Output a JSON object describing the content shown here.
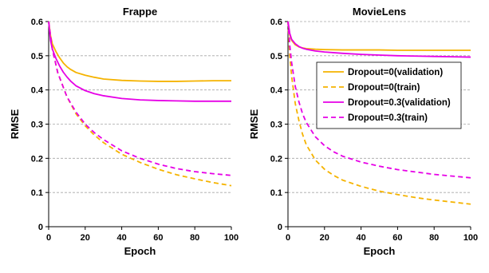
{
  "chart_data": [
    {
      "type": "line",
      "title": "Frappe",
      "xlabel": "Epoch",
      "ylabel": "RMSE",
      "xlim": [
        0,
        100
      ],
      "ylim": [
        0,
        0.6
      ],
      "xticks": [
        0,
        20,
        40,
        60,
        80,
        100
      ],
      "yticks": [
        0,
        0.1,
        0.2,
        0.3,
        0.4,
        0.5,
        0.6
      ],
      "grid": "horizontal-dashed",
      "series": [
        {
          "name": "Dropout=0(validation)",
          "color": "#F5B300",
          "dash": false,
          "points": [
            [
              0,
              0.6
            ],
            [
              1,
              0.56
            ],
            [
              2,
              0.535
            ],
            [
              4,
              0.512
            ],
            [
              6,
              0.494
            ],
            [
              8,
              0.479
            ],
            [
              10,
              0.468
            ],
            [
              12,
              0.46
            ],
            [
              15,
              0.451
            ],
            [
              20,
              0.443
            ],
            [
              25,
              0.437
            ],
            [
              30,
              0.432
            ],
            [
              40,
              0.428
            ],
            [
              50,
              0.426
            ],
            [
              60,
              0.425
            ],
            [
              70,
              0.425
            ],
            [
              80,
              0.426
            ],
            [
              90,
              0.427
            ],
            [
              100,
              0.427
            ]
          ]
        },
        {
          "name": "Dropout=0(train)",
          "color": "#F5B300",
          "dash": true,
          "points": [
            [
              0,
              0.6
            ],
            [
              2,
              0.52
            ],
            [
              5,
              0.45
            ],
            [
              10,
              0.38
            ],
            [
              15,
              0.33
            ],
            [
              20,
              0.295
            ],
            [
              25,
              0.268
            ],
            [
              30,
              0.246
            ],
            [
              40,
              0.212
            ],
            [
              50,
              0.188
            ],
            [
              60,
              0.168
            ],
            [
              70,
              0.152
            ],
            [
              80,
              0.14
            ],
            [
              90,
              0.129
            ],
            [
              100,
              0.12
            ]
          ]
        },
        {
          "name": "Dropout=0.3(validation)",
          "color": "#E600E6",
          "dash": false,
          "points": [
            [
              0,
              0.6
            ],
            [
              1,
              0.545
            ],
            [
              2,
              0.52
            ],
            [
              4,
              0.492
            ],
            [
              6,
              0.47
            ],
            [
              8,
              0.452
            ],
            [
              10,
              0.438
            ],
            [
              12,
              0.426
            ],
            [
              15,
              0.412
            ],
            [
              20,
              0.398
            ],
            [
              25,
              0.389
            ],
            [
              30,
              0.383
            ],
            [
              40,
              0.375
            ],
            [
              50,
              0.371
            ],
            [
              60,
              0.369
            ],
            [
              70,
              0.368
            ],
            [
              80,
              0.367
            ],
            [
              90,
              0.367
            ],
            [
              100,
              0.367
            ]
          ]
        },
        {
          "name": "Dropout=0.3(train)",
          "color": "#E600E6",
          "dash": true,
          "points": [
            [
              0,
              0.6
            ],
            [
              2,
              0.52
            ],
            [
              5,
              0.45
            ],
            [
              10,
              0.38
            ],
            [
              15,
              0.335
            ],
            [
              20,
              0.3
            ],
            [
              25,
              0.275
            ],
            [
              30,
              0.255
            ],
            [
              40,
              0.222
            ],
            [
              50,
              0.2
            ],
            [
              60,
              0.183
            ],
            [
              70,
              0.17
            ],
            [
              80,
              0.161
            ],
            [
              90,
              0.155
            ],
            [
              100,
              0.15
            ]
          ]
        }
      ]
    },
    {
      "type": "line",
      "title": "MovieLens",
      "xlabel": "Epoch",
      "ylabel": "RMSE",
      "xlim": [
        0,
        100
      ],
      "ylim": [
        0,
        0.6
      ],
      "xticks": [
        0,
        20,
        40,
        60,
        80,
        100
      ],
      "yticks": [
        0,
        0.1,
        0.2,
        0.3,
        0.4,
        0.5,
        0.6
      ],
      "grid": "horizontal-dashed",
      "legend": "center-right",
      "series": [
        {
          "name": "Dropout=0(validation)",
          "color": "#F5B300",
          "dash": false,
          "points": [
            [
              0,
              0.6
            ],
            [
              1,
              0.56
            ],
            [
              2,
              0.545
            ],
            [
              4,
              0.532
            ],
            [
              6,
              0.526
            ],
            [
              8,
              0.523
            ],
            [
              10,
              0.521
            ],
            [
              15,
              0.519
            ],
            [
              20,
              0.518
            ],
            [
              30,
              0.517
            ],
            [
              40,
              0.517
            ],
            [
              50,
              0.517
            ],
            [
              60,
              0.516
            ],
            [
              70,
              0.516
            ],
            [
              80,
              0.516
            ],
            [
              90,
              0.516
            ],
            [
              100,
              0.516
            ]
          ]
        },
        {
          "name": "Dropout=0(train)",
          "color": "#F5B300",
          "dash": true,
          "points": [
            [
              0,
              0.6
            ],
            [
              1,
              0.5
            ],
            [
              2,
              0.44
            ],
            [
              4,
              0.36
            ],
            [
              6,
              0.31
            ],
            [
              8,
              0.27
            ],
            [
              10,
              0.24
            ],
            [
              15,
              0.195
            ],
            [
              20,
              0.168
            ],
            [
              25,
              0.15
            ],
            [
              30,
              0.136
            ],
            [
              40,
              0.118
            ],
            [
              50,
              0.104
            ],
            [
              60,
              0.094
            ],
            [
              70,
              0.085
            ],
            [
              80,
              0.078
            ],
            [
              90,
              0.072
            ],
            [
              100,
              0.066
            ]
          ]
        },
        {
          "name": "Dropout=0.3(validation)",
          "color": "#E600E6",
          "dash": false,
          "points": [
            [
              0,
              0.6
            ],
            [
              1,
              0.565
            ],
            [
              2,
              0.548
            ],
            [
              4,
              0.535
            ],
            [
              6,
              0.527
            ],
            [
              8,
              0.522
            ],
            [
              10,
              0.519
            ],
            [
              15,
              0.514
            ],
            [
              20,
              0.511
            ],
            [
              30,
              0.507
            ],
            [
              40,
              0.504
            ],
            [
              50,
              0.502
            ],
            [
              60,
              0.5
            ],
            [
              70,
              0.499
            ],
            [
              80,
              0.498
            ],
            [
              90,
              0.497
            ],
            [
              100,
              0.496
            ]
          ]
        },
        {
          "name": "Dropout=0.3(train)",
          "color": "#E600E6",
          "dash": true,
          "points": [
            [
              0,
              0.6
            ],
            [
              1,
              0.53
            ],
            [
              2,
              0.48
            ],
            [
              4,
              0.41
            ],
            [
              6,
              0.365
            ],
            [
              8,
              0.33
            ],
            [
              10,
              0.305
            ],
            [
              15,
              0.263
            ],
            [
              20,
              0.237
            ],
            [
              25,
              0.219
            ],
            [
              30,
              0.206
            ],
            [
              40,
              0.189
            ],
            [
              50,
              0.177
            ],
            [
              60,
              0.167
            ],
            [
              70,
              0.16
            ],
            [
              80,
              0.153
            ],
            [
              90,
              0.148
            ],
            [
              100,
              0.143
            ]
          ]
        }
      ]
    }
  ]
}
